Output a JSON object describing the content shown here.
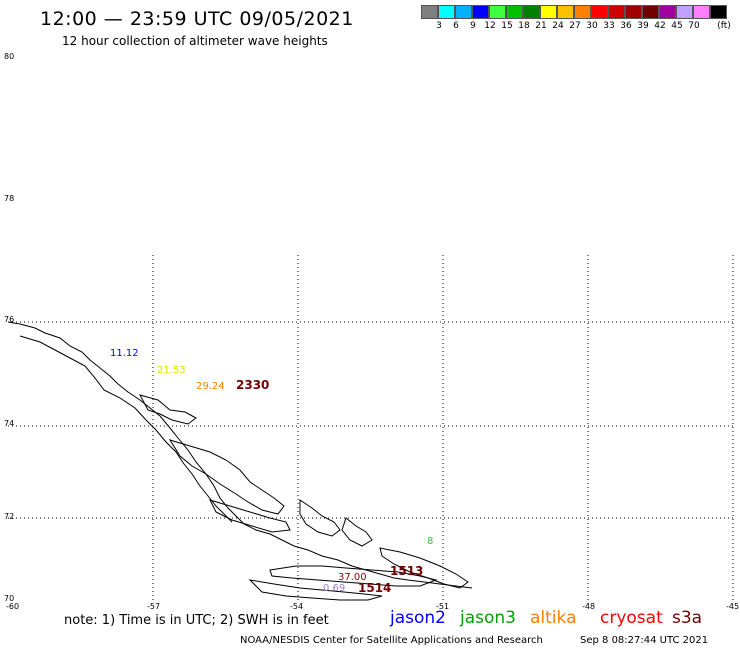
{
  "title": "12:00 — 23:59 UTC 09/05/2021",
  "subtitle": "12 hour collection of altimeter wave heights",
  "legend": {
    "colors": [
      "#808080",
      "#00ffff",
      "#00b0ff",
      "#0000ff",
      "#40ff40",
      "#00c000",
      "#008000",
      "#ffff00",
      "#ffc000",
      "#ff8000",
      "#ff0000",
      "#d00000",
      "#a00000",
      "#700000",
      "#a000a0",
      "#c0a0ff",
      "#ff80ff",
      "#000000"
    ],
    "labels": [
      "3",
      "6",
      "9",
      "12",
      "15",
      "18",
      "21",
      "24",
      "27",
      "30",
      "33",
      "36",
      "39",
      "42",
      "45",
      "70"
    ],
    "unit": "(ft)"
  },
  "axes": {
    "lat_labels": [
      "80",
      "78",
      "76",
      "74",
      "72",
      "70"
    ],
    "lon_labels": [
      "-60",
      "-57",
      "-54",
      "-51",
      "-48",
      "-45"
    ]
  },
  "observations": [
    {
      "text": "11.12",
      "color": "#0000ff"
    },
    {
      "text": "21.53",
      "color": "#ffff00"
    },
    {
      "text": "29.24",
      "color": "#ff8000"
    },
    {
      "text": "2330",
      "color": "#700000"
    },
    {
      "text": "8",
      "color": "#40ff40"
    },
    {
      "text": "37.00",
      "color": "#a00000"
    },
    {
      "text": "1513",
      "color": "#700000"
    },
    {
      "text": "0.69",
      "color": "#a080c0"
    },
    {
      "text": "1514",
      "color": "#700000"
    }
  ],
  "footer": {
    "note": "note: 1) Time is in UTC; 2) SWH is in feet",
    "satellites": [
      {
        "name": "jason2",
        "color": "#0000ff"
      },
      {
        "name": "jason3",
        "color": "#00a000"
      },
      {
        "name": "altika",
        "color": "#ff8000"
      },
      {
        "name": "cryosat",
        "color": "#ff0000"
      },
      {
        "name": "s3a",
        "color": "#700000"
      }
    ],
    "credit": "NOAA/NESDIS Center for Satellite Applications and Research",
    "timestamp": "Sep  8 08:27:44 UTC 2021"
  }
}
